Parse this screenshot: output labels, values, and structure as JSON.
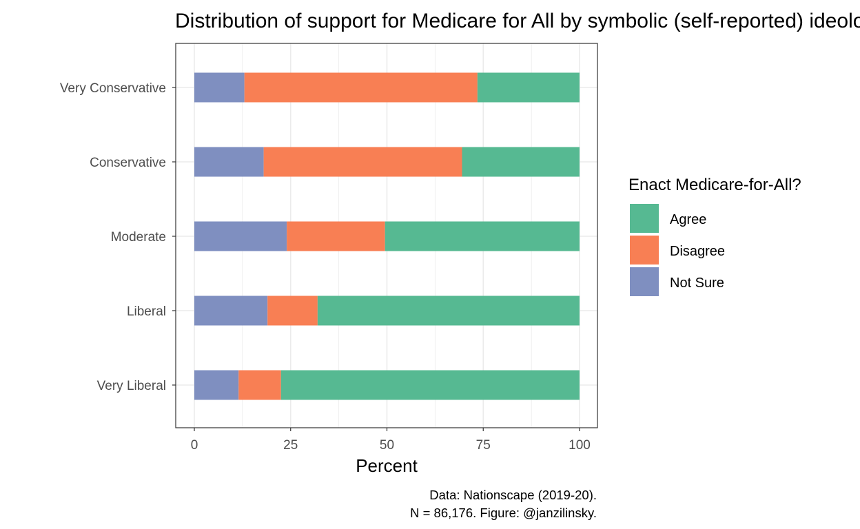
{
  "chart_data": {
    "type": "bar",
    "orientation": "horizontal",
    "stacked": true,
    "title": "Distribution of support for Medicare for All by symbolic (self-reported) ideology",
    "xlabel": "Percent",
    "ylabel": "",
    "xlim": [
      0,
      100
    ],
    "x_ticks": [
      "0",
      "25",
      "50",
      "75",
      "100"
    ],
    "categories": [
      "Very Conservative",
      "Conservative",
      "Moderate",
      "Liberal",
      "Very Liberal"
    ],
    "series": [
      {
        "name": "Not Sure",
        "color": "#7f8fc0",
        "values": [
          13,
          18,
          24,
          19,
          11.5
        ]
      },
      {
        "name": "Disagree",
        "color": "#f87f54",
        "values": [
          60.5,
          51.5,
          25.5,
          13,
          11
        ]
      },
      {
        "name": "Agree",
        "color": "#56b992",
        "values": [
          26.5,
          30.5,
          50.5,
          68,
          77.5
        ]
      }
    ],
    "legend": {
      "title": "Enact Medicare-for-All?",
      "position": "right",
      "order": [
        "Agree",
        "Disagree",
        "Not Sure"
      ]
    },
    "grid": true,
    "caption": [
      "Data: Nationscape (2019-20).",
      "N = 86,176. Figure: @janzilinsky."
    ]
  }
}
